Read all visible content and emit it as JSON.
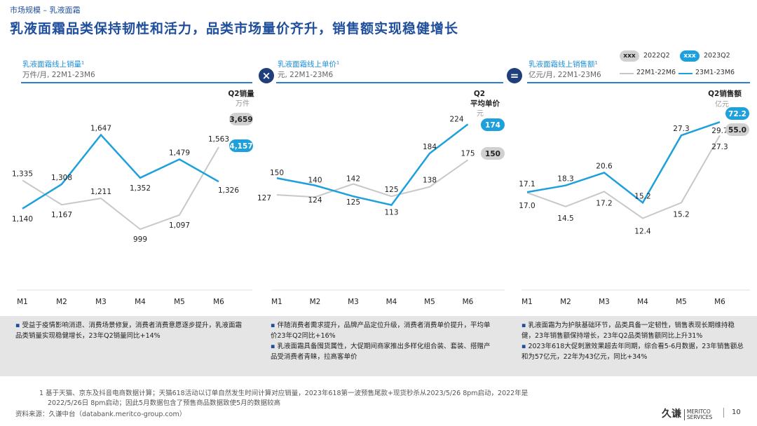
{
  "breadcrumb": "市场规模 – 乳液面霜",
  "title": "乳液面霜品类保持韧性和活力，品类市场量价齐升，销售额实现稳健增长",
  "legend": {
    "pill_2022": "xxx",
    "label_2022": "2022Q2",
    "pill_2023": "xxx",
    "label_2023": "2023Q2",
    "line_2022": "22M1-22M6",
    "line_2023": "23M1-23M6"
  },
  "operators": {
    "times": "×",
    "equals": "="
  },
  "colors": {
    "accent": "#1f4e9c",
    "blue": "#1ea0dc",
    "gray": "#c8c8c8",
    "dark": "#1f3f7a"
  },
  "panels": [
    {
      "title": "乳液面霜线上销量¹",
      "subtitle": "万件/月, 22M1-23M6",
      "q2_label": "Q2销量",
      "q2_unit": "万件",
      "q2_2022": "3,659",
      "q2_2023": "4,157"
    },
    {
      "title": "乳液面霜线上单价¹",
      "subtitle": "元, 22M1-23M6",
      "q2_label": "Q2",
      "q2_label2": "平均单价",
      "q2_unit": "元",
      "q2_2022": "150",
      "q2_2023": "174"
    },
    {
      "title": "乳液面霜线上销售额¹",
      "subtitle": "亿元/月, 22M1-23M6",
      "q2_label": "Q2销售额",
      "q2_unit": "亿元",
      "q2_2022": "55.0",
      "q2_2023": "72.2"
    }
  ],
  "chart_data": [
    {
      "type": "line",
      "title": "乳液面霜线上销量",
      "categories": [
        "M1",
        "M2",
        "M3",
        "M4",
        "M5",
        "M6"
      ],
      "series": [
        {
          "name": "22M1-22M6",
          "values": [
            1335,
            1167,
            1211,
            999,
            1097,
            1563
          ],
          "labels": [
            "1,335",
            "1,167",
            "1,211",
            "999",
            "1,097",
            "1,563"
          ]
        },
        {
          "name": "23M1-23M6",
          "values": [
            1140,
            1308,
            1647,
            1352,
            1479,
            1326
          ],
          "labels": [
            "1,140",
            "1,308",
            "1,647",
            "1,352",
            "1,479",
            "1,326"
          ]
        }
      ],
      "ylim": [
        600,
        1900
      ]
    },
    {
      "type": "line",
      "title": "乳液面霜线上单价",
      "categories": [
        "M1",
        "M2",
        "M3",
        "M4",
        "M5",
        "M6"
      ],
      "series": [
        {
          "name": "22M1-22M6",
          "values": [
            127,
            124,
            142,
            125,
            138,
            175
          ],
          "labels": [
            "127",
            "124",
            "142",
            "125",
            "138",
            "175"
          ]
        },
        {
          "name": "23M1-23M6",
          "values": [
            150,
            140,
            125,
            113,
            184,
            224
          ],
          "labels": [
            "150",
            "140",
            "125",
            "113",
            "184",
            "224"
          ]
        }
      ],
      "ylim": [
        0,
        260
      ]
    },
    {
      "type": "line",
      "title": "乳液面霜线上销售额",
      "categories": [
        "M1",
        "M2",
        "M3",
        "M4",
        "M5",
        "M6"
      ],
      "series": [
        {
          "name": "22M1-22M6",
          "values": [
            17.0,
            14.5,
            17.2,
            12.4,
            15.2,
            27.3
          ],
          "labels": [
            "17.0",
            "14.5",
            "17.2",
            "12.4",
            "15.2",
            "27.3"
          ]
        },
        {
          "name": "23M1-23M6",
          "values": [
            17.1,
            18.3,
            20.6,
            15.2,
            27.3,
            29.7
          ],
          "labels": [
            "17.1",
            "18.3",
            "20.6",
            "15.2",
            "27.3",
            "29.7"
          ]
        }
      ],
      "ylim": [
        0,
        34
      ]
    }
  ],
  "notes": [
    [
      "受益于疫情影响消退、消费场景修复，消费者消费意愿逐步提升，乳液面霜品类销量实现稳健增长，23年Q2销量同比+14%"
    ],
    [
      "伴随消费者需求提升，品牌产品定位升级，消费者消费单价提升，平均单价23年Q2同比+16%",
      "乳液面霜具备囤货属性，大促期间商家推出多样化组合装、套装、搭赠产品受消费者青睐，拉高客单价"
    ],
    [
      "乳液面霜为为护肤基础环节，品类具备一定韧性，销售表现长期维持稳健，23年销售额保持增长，23年Q2品类销售额同比上升31%",
      "2023年618大促刺激效果超去年同期，综合看5-6月数据，23年销售额总和为57亿元，22年为43亿元，同比+34%"
    ]
  ],
  "footnote_1": "1   基于天猫、京东及抖音电商数据计算；天猫618活动以订单自然发生时间计算对应销量，2023年618第一波预售尾款+现货秒杀从2023/5/26 8pm启动，2022年是",
  "footnote_2": "2022/5/26日 8pm启动；因此5月数据包含了预售商品数据致使5月的数据较高",
  "source": "资料来源：久谦中台（databank.meritco-group.com）",
  "logo_cn": "久谦",
  "logo_en1": "MERITCO",
  "logo_en2": "SERVICES",
  "page_number": "10"
}
